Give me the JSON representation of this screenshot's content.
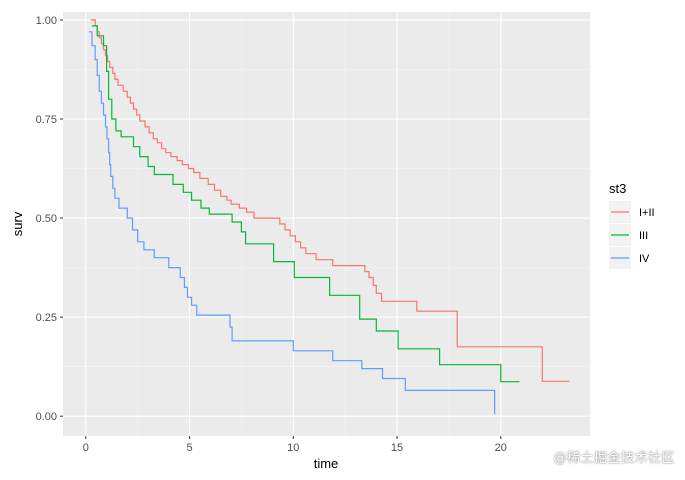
{
  "chart_data": {
    "type": "line",
    "step": true,
    "title": "",
    "xlabel": "time",
    "ylabel": "surv",
    "xlim": [
      -1.1,
      24.3
    ],
    "ylim": [
      -0.05,
      1.02
    ],
    "xticks": [
      0,
      5,
      10,
      15,
      20
    ],
    "xtick_labels": [
      "0",
      "5",
      "10",
      "15",
      "20"
    ],
    "yticks": [
      0,
      0.25,
      0.5,
      0.75,
      1
    ],
    "ytick_labels": [
      "0.00",
      "0.25",
      "0.50",
      "0.75",
      "1.00"
    ],
    "grid": true,
    "legend": {
      "title": "st3",
      "position": "right"
    },
    "series": [
      {
        "name": "I+II",
        "color": "#F8766D",
        "points": [
          [
            0.25,
            1.0
          ],
          [
            0.45,
            0.985
          ],
          [
            0.55,
            0.97
          ],
          [
            0.65,
            0.955
          ],
          [
            0.75,
            0.94
          ],
          [
            0.85,
            0.925
          ],
          [
            0.95,
            0.91
          ],
          [
            1.05,
            0.895
          ],
          [
            1.15,
            0.88
          ],
          [
            1.3,
            0.865
          ],
          [
            1.4,
            0.85
          ],
          [
            1.55,
            0.835
          ],
          [
            1.8,
            0.82
          ],
          [
            2.0,
            0.805
          ],
          [
            2.15,
            0.79
          ],
          [
            2.3,
            0.775
          ],
          [
            2.45,
            0.76
          ],
          [
            2.6,
            0.745
          ],
          [
            2.85,
            0.73
          ],
          [
            3.05,
            0.715
          ],
          [
            3.25,
            0.7
          ],
          [
            3.45,
            0.69
          ],
          [
            3.65,
            0.675
          ],
          [
            3.85,
            0.665
          ],
          [
            4.1,
            0.655
          ],
          [
            4.4,
            0.645
          ],
          [
            4.65,
            0.635
          ],
          [
            4.95,
            0.625
          ],
          [
            5.2,
            0.615
          ],
          [
            5.5,
            0.6
          ],
          [
            5.9,
            0.585
          ],
          [
            6.2,
            0.57
          ],
          [
            6.5,
            0.555
          ],
          [
            6.8,
            0.545
          ],
          [
            7.0,
            0.535
          ],
          [
            7.4,
            0.525
          ],
          [
            7.75,
            0.515
          ],
          [
            8.1,
            0.5
          ],
          [
            9.35,
            0.485
          ],
          [
            9.6,
            0.47
          ],
          [
            9.85,
            0.455
          ],
          [
            10.1,
            0.44
          ],
          [
            10.35,
            0.425
          ],
          [
            10.6,
            0.41
          ],
          [
            11.1,
            0.395
          ],
          [
            11.9,
            0.38
          ],
          [
            13.45,
            0.365
          ],
          [
            13.65,
            0.35
          ],
          [
            13.85,
            0.33
          ],
          [
            14.0,
            0.31
          ],
          [
            14.25,
            0.29
          ],
          [
            15.95,
            0.265
          ],
          [
            17.9,
            0.175
          ],
          [
            22.0,
            0.088
          ],
          [
            23.3,
            0.088
          ]
        ]
      },
      {
        "name": "III",
        "color": "#00BA38",
        "points": [
          [
            0.3,
            0.985
          ],
          [
            0.55,
            0.96
          ],
          [
            0.85,
            0.935
          ],
          [
            1.0,
            0.87
          ],
          [
            1.1,
            0.8
          ],
          [
            1.25,
            0.75
          ],
          [
            1.45,
            0.72
          ],
          [
            1.7,
            0.705
          ],
          [
            2.3,
            0.68
          ],
          [
            2.6,
            0.655
          ],
          [
            3.0,
            0.63
          ],
          [
            3.3,
            0.61
          ],
          [
            4.2,
            0.585
          ],
          [
            4.7,
            0.565
          ],
          [
            5.1,
            0.545
          ],
          [
            5.55,
            0.525
          ],
          [
            5.95,
            0.51
          ],
          [
            7.05,
            0.49
          ],
          [
            7.5,
            0.465
          ],
          [
            7.7,
            0.435
          ],
          [
            9.05,
            0.39
          ],
          [
            10.05,
            0.35
          ],
          [
            11.75,
            0.305
          ],
          [
            13.2,
            0.245
          ],
          [
            14.0,
            0.215
          ],
          [
            15.05,
            0.17
          ],
          [
            17.05,
            0.13
          ],
          [
            20.0,
            0.087
          ],
          [
            20.9,
            0.087
          ]
        ]
      },
      {
        "name": "IV",
        "color": "#619CFF",
        "points": [
          [
            0.15,
            0.97
          ],
          [
            0.3,
            0.935
          ],
          [
            0.45,
            0.9
          ],
          [
            0.55,
            0.86
          ],
          [
            0.65,
            0.82
          ],
          [
            0.75,
            0.79
          ],
          [
            0.85,
            0.76
          ],
          [
            0.95,
            0.73
          ],
          [
            1.02,
            0.7
          ],
          [
            1.1,
            0.665
          ],
          [
            1.15,
            0.635
          ],
          [
            1.2,
            0.605
          ],
          [
            1.3,
            0.575
          ],
          [
            1.4,
            0.55
          ],
          [
            1.6,
            0.525
          ],
          [
            2.0,
            0.5
          ],
          [
            2.25,
            0.47
          ],
          [
            2.5,
            0.44
          ],
          [
            2.8,
            0.42
          ],
          [
            3.3,
            0.4
          ],
          [
            4.0,
            0.375
          ],
          [
            4.55,
            0.35
          ],
          [
            4.75,
            0.325
          ],
          [
            4.9,
            0.3
          ],
          [
            5.1,
            0.28
          ],
          [
            5.35,
            0.255
          ],
          [
            6.95,
            0.225
          ],
          [
            7.05,
            0.19
          ],
          [
            10.0,
            0.165
          ],
          [
            11.9,
            0.14
          ],
          [
            13.3,
            0.12
          ],
          [
            14.3,
            0.095
          ],
          [
            15.4,
            0.065
          ],
          [
            19.7,
            0.005
          ]
        ]
      }
    ]
  },
  "watermark": "@稀土掘金技术社区"
}
